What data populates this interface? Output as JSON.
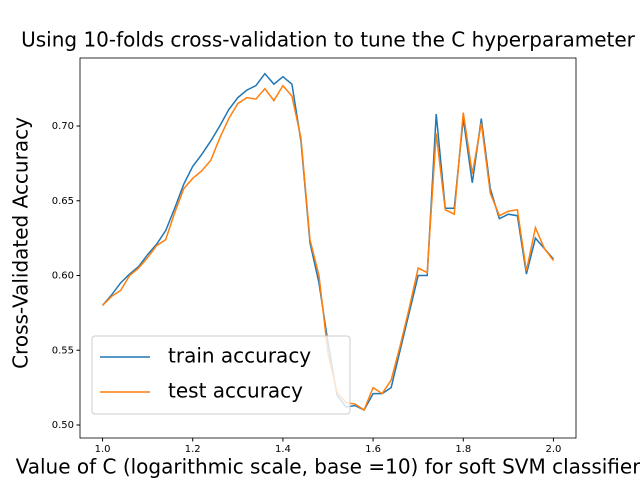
{
  "chart_data": {
    "type": "line",
    "title": "Using 10-folds cross-validation to tune the C hyperparameter",
    "xlabel": "Value of C (logarithmic scale, base =10) for soft SVM classifier",
    "ylabel": "Cross-Validated Accuracy",
    "x": [
      1.0,
      1.02,
      1.04,
      1.06,
      1.08,
      1.1,
      1.12,
      1.14,
      1.16,
      1.18,
      1.2,
      1.22,
      1.24,
      1.26,
      1.28,
      1.3,
      1.32,
      1.34,
      1.36,
      1.38,
      1.4,
      1.42,
      1.44,
      1.46,
      1.48,
      1.5,
      1.52,
      1.54,
      1.56,
      1.58,
      1.6,
      1.62,
      1.64,
      1.66,
      1.68,
      1.7,
      1.72,
      1.74,
      1.76,
      1.78,
      1.8,
      1.82,
      1.84,
      1.86,
      1.88,
      1.9,
      1.92,
      1.94,
      1.96,
      1.98,
      2.0
    ],
    "series": [
      {
        "name": "train accuracy",
        "color": "#1f77b4",
        "values": [
          0.58,
          0.587,
          0.595,
          0.601,
          0.606,
          0.614,
          0.621,
          0.63,
          0.645,
          0.661,
          0.673,
          0.681,
          0.69,
          0.7,
          0.711,
          0.719,
          0.724,
          0.727,
          0.735,
          0.728,
          0.733,
          0.728,
          0.69,
          0.622,
          0.595,
          0.555,
          0.52,
          0.512,
          0.513,
          0.51,
          0.521,
          0.521,
          0.525,
          0.55,
          0.575,
          0.6,
          0.6,
          0.708,
          0.645,
          0.645,
          0.705,
          0.662,
          0.705,
          0.658,
          0.638,
          0.641,
          0.64,
          0.601,
          0.625,
          0.618,
          0.611
        ]
      },
      {
        "name": "test accuracy",
        "color": "#ff7f0e",
        "values": [
          0.58,
          0.586,
          0.59,
          0.6,
          0.605,
          0.612,
          0.62,
          0.624,
          0.642,
          0.658,
          0.665,
          0.67,
          0.677,
          0.692,
          0.705,
          0.715,
          0.719,
          0.718,
          0.725,
          0.717,
          0.727,
          0.72,
          0.692,
          0.624,
          0.6,
          0.548,
          0.522,
          0.515,
          0.514,
          0.51,
          0.525,
          0.521,
          0.53,
          0.553,
          0.578,
          0.605,
          0.602,
          0.695,
          0.644,
          0.641,
          0.709,
          0.668,
          0.702,
          0.655,
          0.64,
          0.643,
          0.644,
          0.603,
          0.632,
          0.618,
          0.61
        ]
      }
    ],
    "xlim": [
      0.95,
      2.05
    ],
    "ylim": [
      0.4913,
      0.7455
    ],
    "xticks": [
      {
        "value": 1.0,
        "label": "1.0"
      },
      {
        "value": 1.2,
        "label": "1.2"
      },
      {
        "value": 1.4,
        "label": "1.4"
      },
      {
        "value": 1.6,
        "label": "1.6"
      },
      {
        "value": 1.8,
        "label": "1.8"
      },
      {
        "value": 2.0,
        "label": "2.0"
      }
    ],
    "yticks": [
      {
        "value": 0.5,
        "label": "0.50"
      },
      {
        "value": 0.55,
        "label": "0.55"
      },
      {
        "value": 0.6,
        "label": "0.60"
      },
      {
        "value": 0.65,
        "label": "0.65"
      },
      {
        "value": 0.7,
        "label": "0.70"
      }
    ],
    "legend": "lower left"
  }
}
